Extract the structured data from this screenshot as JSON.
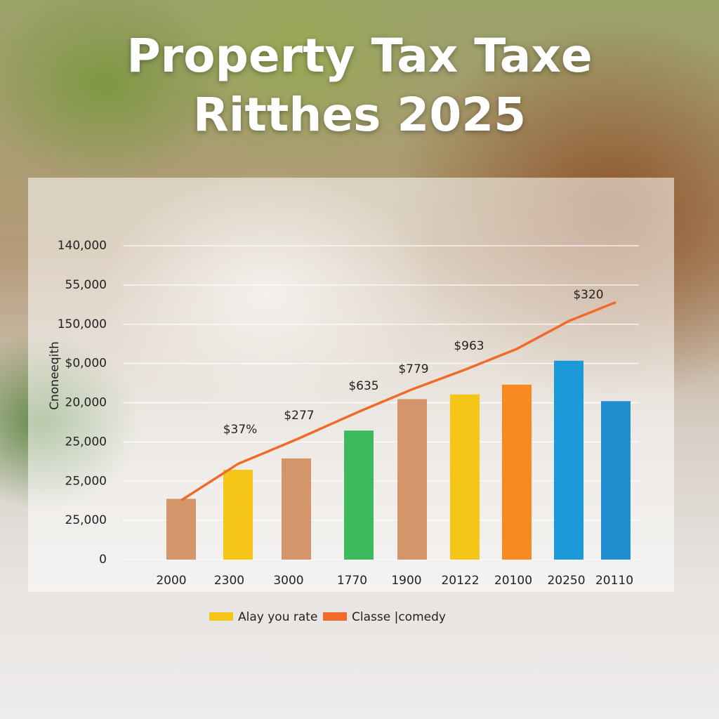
{
  "chart_data": {
    "type": "bar",
    "title": "Property Tax Taxe Ritthes 2025",
    "y_label": "Cnoneeqith",
    "categories": [
      "2000",
      "2300",
      "3000",
      "1770",
      "1900",
      "20122",
      "20100",
      "20250",
      "20110"
    ],
    "series": [
      {
        "name": "Alay you rate",
        "color": "#f5c518",
        "colors": [
          "#d4956a",
          "#f5c518",
          "#d4956a",
          "#3dba5e",
          "#d4956a",
          "#f5c518",
          "#f78a1f",
          "#1a9ad8",
          "#1f8fd0"
        ],
        "values": [
          1.55,
          2.29,
          2.58,
          3.29,
          4.09,
          4.21,
          4.46,
          5.07,
          4.04
        ]
      },
      {
        "name": "Classe |comedy",
        "color": "#f26a2a",
        "type": "line",
        "values": [
          1.51,
          2.44,
          3.06,
          3.77,
          4.34,
          4.84,
          5.37,
          6.08,
          6.56
        ]
      }
    ],
    "annotations": [
      "$37%",
      "$277",
      "$635",
      "$779",
      "$963",
      "$320"
    ],
    "ylim": [
      0,
      8
    ],
    "yticks": [
      0,
      {
        "value": 1,
        "label": "25,000"
      },
      {
        "value": 2,
        "label": "25,000"
      },
      {
        "value": 3,
        "label": "25,000"
      },
      {
        "value": 4,
        "label": "20,000"
      },
      {
        "value": 5,
        "label": "$0,000"
      },
      {
        "value": 6,
        "label": "150,000"
      },
      {
        "value": 7,
        "label": "55,000"
      },
      {
        "value": 8,
        "label": "140,000"
      }
    ],
    "grid": true
  }
}
